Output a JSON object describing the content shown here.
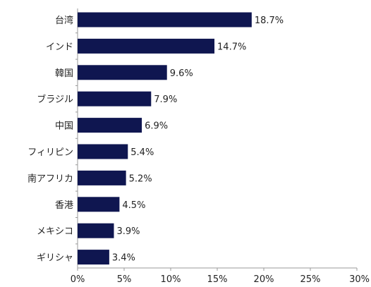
{
  "chart_data": {
    "type": "bar",
    "orientation": "horizontal",
    "categories": [
      "台湾",
      "インド",
      "韓国",
      "ブラジル",
      "中国",
      "フィリピン",
      "南アフリカ",
      "香港",
      "メキシコ",
      "ギリシャ"
    ],
    "values": [
      18.7,
      14.7,
      9.6,
      7.9,
      6.9,
      5.4,
      5.2,
      4.5,
      3.9,
      3.4
    ],
    "value_labels": [
      "18.7%",
      "14.7%",
      "9.6%",
      "7.9%",
      "6.9%",
      "5.4%",
      "5.2%",
      "4.5%",
      "3.9%",
      "3.4%"
    ],
    "xlim": [
      0,
      30
    ],
    "x_ticks": [
      0,
      5,
      10,
      15,
      20,
      25,
      30
    ],
    "x_tick_labels": [
      "0%",
      "5%",
      "10%",
      "15%",
      "20%",
      "25%",
      "30%"
    ],
    "grid": false,
    "legend": "none",
    "bar_color": "#0f1650"
  }
}
